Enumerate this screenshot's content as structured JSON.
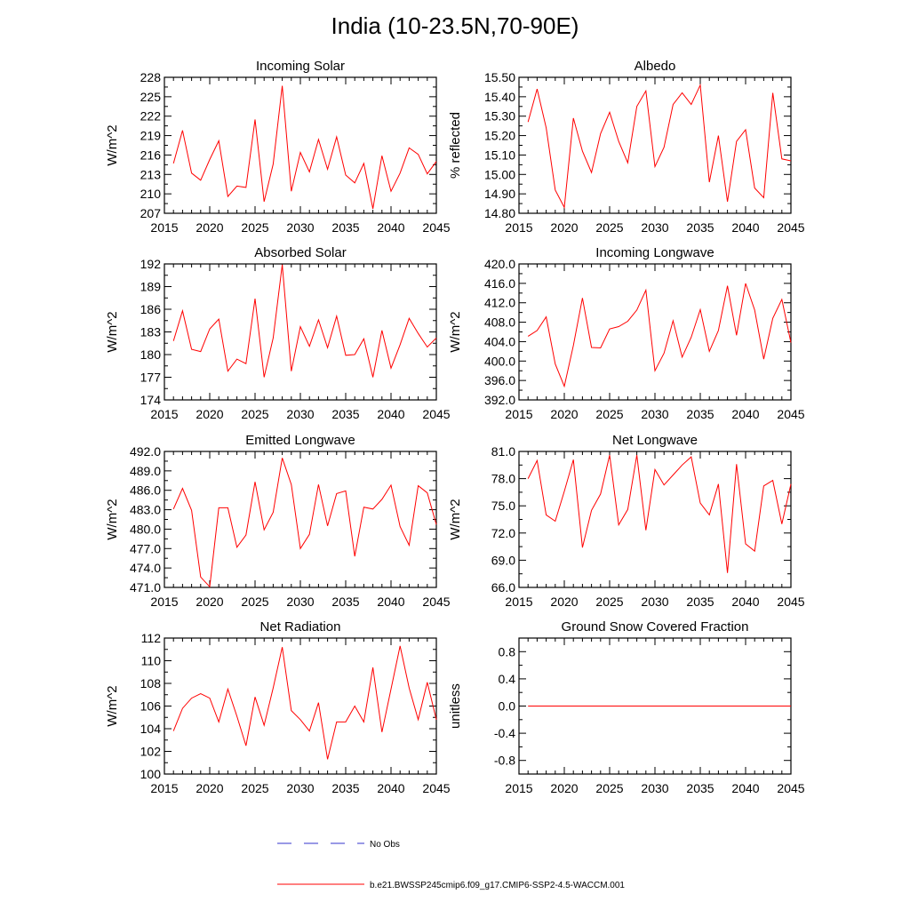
{
  "title": "India (10-23.5N,70-90E)",
  "colors": {
    "series": "#ff0000",
    "obs": "#3333cc",
    "axis": "#000000"
  },
  "legend": {
    "obs_label": "No Obs",
    "model_label": "b.e21.BWSSP245cmip6.f09_g17.CMIP6-SSP2-4.5-WACCM.001"
  },
  "chart_data": [
    {
      "type": "line",
      "title": "Incoming Solar",
      "ylabel": "W/m^2",
      "xlim": [
        2015,
        2045
      ],
      "ylim": [
        207,
        228
      ],
      "xticks": [
        "2015",
        "2020",
        "2025",
        "2030",
        "2035",
        "2040",
        "2045"
      ],
      "yticks": [
        {
          "value": 207,
          "label": "207"
        },
        {
          "value": 210,
          "label": "210"
        },
        {
          "value": 213,
          "label": "213"
        },
        {
          "value": 216,
          "label": "216"
        },
        {
          "value": 219,
          "label": "219"
        },
        {
          "value": 222,
          "label": "222"
        },
        {
          "value": 225,
          "label": "225"
        },
        {
          "value": 228,
          "label": "228"
        }
      ],
      "x": [
        2016,
        2017,
        2018,
        2019,
        2020,
        2021,
        2022,
        2023,
        2024,
        2025,
        2026,
        2027,
        2028,
        2029,
        2030,
        2031,
        2032,
        2033,
        2034,
        2035,
        2036,
        2037,
        2038,
        2039,
        2040,
        2041,
        2042,
        2043,
        2044,
        2045
      ],
      "values": [
        214.7,
        219.8,
        213.2,
        212.1,
        215.3,
        218.2,
        209.6,
        211.2,
        211.0,
        221.5,
        208.8,
        214.6,
        226.7,
        210.4,
        216.4,
        213.4,
        218.4,
        213.8,
        218.8,
        212.9,
        211.7,
        214.7,
        207.7,
        215.9,
        210.4,
        213.2,
        217.1,
        216.1,
        213.1,
        215.0
      ]
    },
    {
      "type": "line",
      "title": "Albedo",
      "ylabel": "% reflected",
      "xlim": [
        2015,
        2045
      ],
      "ylim": [
        14.8,
        15.5
      ],
      "xticks": [
        "2015",
        "2020",
        "2025",
        "2030",
        "2035",
        "2040",
        "2045"
      ],
      "yticks": [
        {
          "value": 14.8,
          "label": "14.80"
        },
        {
          "value": 14.9,
          "label": "14.90"
        },
        {
          "value": 15.0,
          "label": "15.00"
        },
        {
          "value": 15.1,
          "label": "15.10"
        },
        {
          "value": 15.2,
          "label": "15.20"
        },
        {
          "value": 15.3,
          "label": "15.30"
        },
        {
          "value": 15.4,
          "label": "15.40"
        },
        {
          "value": 15.5,
          "label": "15.50"
        }
      ],
      "x": [
        2016,
        2017,
        2018,
        2019,
        2020,
        2021,
        2022,
        2023,
        2024,
        2025,
        2026,
        2027,
        2028,
        2029,
        2030,
        2031,
        2032,
        2033,
        2034,
        2035,
        2036,
        2037,
        2038,
        2039,
        2040,
        2041,
        2042,
        2043,
        2044,
        2045
      ],
      "values": [
        15.27,
        15.44,
        15.24,
        14.92,
        14.83,
        15.29,
        15.12,
        15.01,
        15.21,
        15.32,
        15.17,
        15.06,
        15.35,
        15.43,
        15.04,
        15.14,
        15.36,
        15.42,
        15.36,
        15.46,
        14.96,
        15.2,
        14.86,
        15.17,
        15.23,
        14.93,
        14.88,
        15.42,
        15.08,
        15.07
      ]
    },
    {
      "type": "line",
      "title": "Absorbed Solar",
      "ylabel": "W/m^2",
      "xlim": [
        2015,
        2045
      ],
      "ylim": [
        174,
        192
      ],
      "xticks": [
        "2015",
        "2020",
        "2025",
        "2030",
        "2035",
        "2040",
        "2045"
      ],
      "yticks": [
        {
          "value": 174,
          "label": "174"
        },
        {
          "value": 177,
          "label": "177"
        },
        {
          "value": 180,
          "label": "180"
        },
        {
          "value": 183,
          "label": "183"
        },
        {
          "value": 186,
          "label": "186"
        },
        {
          "value": 189,
          "label": "189"
        },
        {
          "value": 192,
          "label": "192"
        }
      ],
      "x": [
        2016,
        2017,
        2018,
        2019,
        2020,
        2021,
        2022,
        2023,
        2024,
        2025,
        2026,
        2027,
        2028,
        2029,
        2030,
        2031,
        2032,
        2033,
        2034,
        2035,
        2036,
        2037,
        2038,
        2039,
        2040,
        2041,
        2042,
        2043,
        2044,
        2045
      ],
      "values": [
        181.8,
        185.8,
        180.7,
        180.4,
        183.4,
        184.7,
        177.8,
        179.4,
        178.8,
        187.4,
        177.0,
        182.2,
        191.9,
        177.8,
        183.7,
        181.1,
        184.6,
        180.9,
        185.1,
        179.9,
        180.0,
        182.1,
        177.0,
        183.2,
        178.2,
        181.3,
        184.8,
        182.8,
        181.0,
        182.2
      ]
    },
    {
      "type": "line",
      "title": "Incoming Longwave",
      "ylabel": "W/m^2",
      "xlim": [
        2015,
        2045
      ],
      "ylim": [
        392,
        420
      ],
      "xticks": [
        "2015",
        "2020",
        "2025",
        "2030",
        "2035",
        "2040",
        "2045"
      ],
      "yticks": [
        {
          "value": 392,
          "label": "392.0"
        },
        {
          "value": 396,
          "label": "396.0"
        },
        {
          "value": 400,
          "label": "400.0"
        },
        {
          "value": 404,
          "label": "404.0"
        },
        {
          "value": 408,
          "label": "408.0"
        },
        {
          "value": 412,
          "label": "412.0"
        },
        {
          "value": 416,
          "label": "416.0"
        },
        {
          "value": 420,
          "label": "420.0"
        }
      ],
      "x": [
        2016,
        2017,
        2018,
        2019,
        2020,
        2021,
        2022,
        2023,
        2024,
        2025,
        2026,
        2027,
        2028,
        2029,
        2030,
        2031,
        2032,
        2033,
        2034,
        2035,
        2036,
        2037,
        2038,
        2039,
        2040,
        2041,
        2042,
        2043,
        2044,
        2045
      ],
      "values": [
        405.1,
        406.3,
        409.1,
        399.4,
        394.8,
        403.2,
        413.0,
        402.8,
        402.7,
        406.6,
        407.1,
        408.2,
        410.5,
        414.6,
        398.0,
        401.6,
        408.3,
        400.8,
        404.9,
        410.6,
        402.0,
        406.3,
        415.5,
        405.3,
        416.0,
        410.5,
        400.4,
        408.8,
        412.7,
        403.8
      ]
    },
    {
      "type": "line",
      "title": "Emitted Longwave",
      "ylabel": "W/m^2",
      "xlim": [
        2015,
        2045
      ],
      "ylim": [
        471,
        492
      ],
      "xticks": [
        "2015",
        "2020",
        "2025",
        "2030",
        "2035",
        "2040",
        "2045"
      ],
      "yticks": [
        {
          "value": 471,
          "label": "471.0"
        },
        {
          "value": 474,
          "label": "474.0"
        },
        {
          "value": 477,
          "label": "477.0"
        },
        {
          "value": 480,
          "label": "480.0"
        },
        {
          "value": 483,
          "label": "483.0"
        },
        {
          "value": 486,
          "label": "486.0"
        },
        {
          "value": 489,
          "label": "489.0"
        },
        {
          "value": 492,
          "label": "492.0"
        }
      ],
      "x": [
        2016,
        2017,
        2018,
        2019,
        2020,
        2021,
        2022,
        2023,
        2024,
        2025,
        2026,
        2027,
        2028,
        2029,
        2030,
        2031,
        2032,
        2033,
        2034,
        2035,
        2036,
        2037,
        2038,
        2039,
        2040,
        2041,
        2042,
        2043,
        2044,
        2045
      ],
      "values": [
        483.1,
        486.3,
        482.9,
        472.6,
        471.1,
        483.3,
        483.3,
        477.2,
        479.1,
        487.3,
        479.9,
        482.6,
        491.0,
        486.9,
        477.0,
        479.2,
        486.9,
        480.5,
        485.5,
        485.9,
        475.8,
        483.4,
        483.1,
        484.6,
        486.8,
        480.4,
        477.5,
        486.7,
        485.6,
        480.7
      ]
    },
    {
      "type": "line",
      "title": "Net Longwave",
      "ylabel": "W/m^2",
      "xlim": [
        2015,
        2045
      ],
      "ylim": [
        66,
        81
      ],
      "xticks": [
        "2015",
        "2020",
        "2025",
        "2030",
        "2035",
        "2040",
        "2045"
      ],
      "yticks": [
        {
          "value": 66,
          "label": "66.0"
        },
        {
          "value": 69,
          "label": "69.0"
        },
        {
          "value": 72,
          "label": "72.0"
        },
        {
          "value": 75,
          "label": "75.0"
        },
        {
          "value": 78,
          "label": "78.0"
        },
        {
          "value": 81,
          "label": "81.0"
        }
      ],
      "x": [
        2016,
        2017,
        2018,
        2019,
        2020,
        2021,
        2022,
        2023,
        2024,
        2025,
        2026,
        2027,
        2028,
        2029,
        2030,
        2031,
        2032,
        2033,
        2034,
        2035,
        2036,
        2037,
        2038,
        2039,
        2040,
        2041,
        2042,
        2043,
        2044,
        2045
      ],
      "values": [
        78.0,
        80.0,
        74.0,
        73.3,
        76.6,
        80.1,
        70.4,
        74.5,
        76.3,
        80.6,
        72.9,
        74.6,
        80.6,
        72.3,
        79.0,
        77.3,
        78.4,
        79.5,
        80.4,
        75.3,
        74.0,
        77.4,
        67.6,
        79.6,
        70.8,
        70.0,
        77.2,
        77.8,
        73.0,
        77.4
      ]
    },
    {
      "type": "line",
      "title": "Net Radiation",
      "ylabel": "W/m^2",
      "xlim": [
        2015,
        2045
      ],
      "ylim": [
        100,
        112
      ],
      "xticks": [
        "2015",
        "2020",
        "2025",
        "2030",
        "2035",
        "2040",
        "2045"
      ],
      "yticks": [
        {
          "value": 100,
          "label": "100"
        },
        {
          "value": 102,
          "label": "102"
        },
        {
          "value": 104,
          "label": "104"
        },
        {
          "value": 106,
          "label": "106"
        },
        {
          "value": 108,
          "label": "108"
        },
        {
          "value": 110,
          "label": "110"
        },
        {
          "value": 112,
          "label": "112"
        }
      ],
      "x": [
        2016,
        2017,
        2018,
        2019,
        2020,
        2021,
        2022,
        2023,
        2024,
        2025,
        2026,
        2027,
        2028,
        2029,
        2030,
        2031,
        2032,
        2033,
        2034,
        2035,
        2036,
        2037,
        2038,
        2039,
        2040,
        2041,
        2042,
        2043,
        2044,
        2045
      ],
      "values": [
        103.8,
        105.8,
        106.7,
        107.1,
        106.7,
        104.6,
        107.5,
        105.1,
        102.5,
        106.8,
        104.3,
        107.6,
        111.2,
        105.6,
        104.8,
        103.8,
        106.3,
        101.3,
        104.6,
        104.6,
        106.0,
        104.6,
        109.4,
        103.7,
        107.5,
        111.3,
        107.6,
        104.8,
        108.1,
        104.8
      ]
    },
    {
      "type": "line",
      "title": "Ground Snow Covered Fraction",
      "ylabel": "unitless",
      "xlim": [
        2015,
        2045
      ],
      "ylim": [
        -1.0,
        1.0
      ],
      "xticks": [
        "2015",
        "2020",
        "2025",
        "2030",
        "2035",
        "2040",
        "2045"
      ],
      "yticks": [
        {
          "value": -0.8,
          "label": "-0.8"
        },
        {
          "value": -0.4,
          "label": "-0.4"
        },
        {
          "value": 0.0,
          "label": "0.0"
        },
        {
          "value": 0.4,
          "label": "0.4"
        },
        {
          "value": 0.8,
          "label": "0.8"
        }
      ],
      "x": [
        2016,
        2017,
        2018,
        2019,
        2020,
        2021,
        2022,
        2023,
        2024,
        2025,
        2026,
        2027,
        2028,
        2029,
        2030,
        2031,
        2032,
        2033,
        2034,
        2035,
        2036,
        2037,
        2038,
        2039,
        2040,
        2041,
        2042,
        2043,
        2044,
        2045
      ],
      "values": [
        0,
        0,
        0,
        0,
        0,
        0,
        0,
        0,
        0,
        0,
        0,
        0,
        0,
        0,
        0,
        0,
        0,
        0,
        0,
        0,
        0,
        0,
        0,
        0,
        0,
        0,
        0,
        0,
        0,
        0
      ]
    }
  ]
}
